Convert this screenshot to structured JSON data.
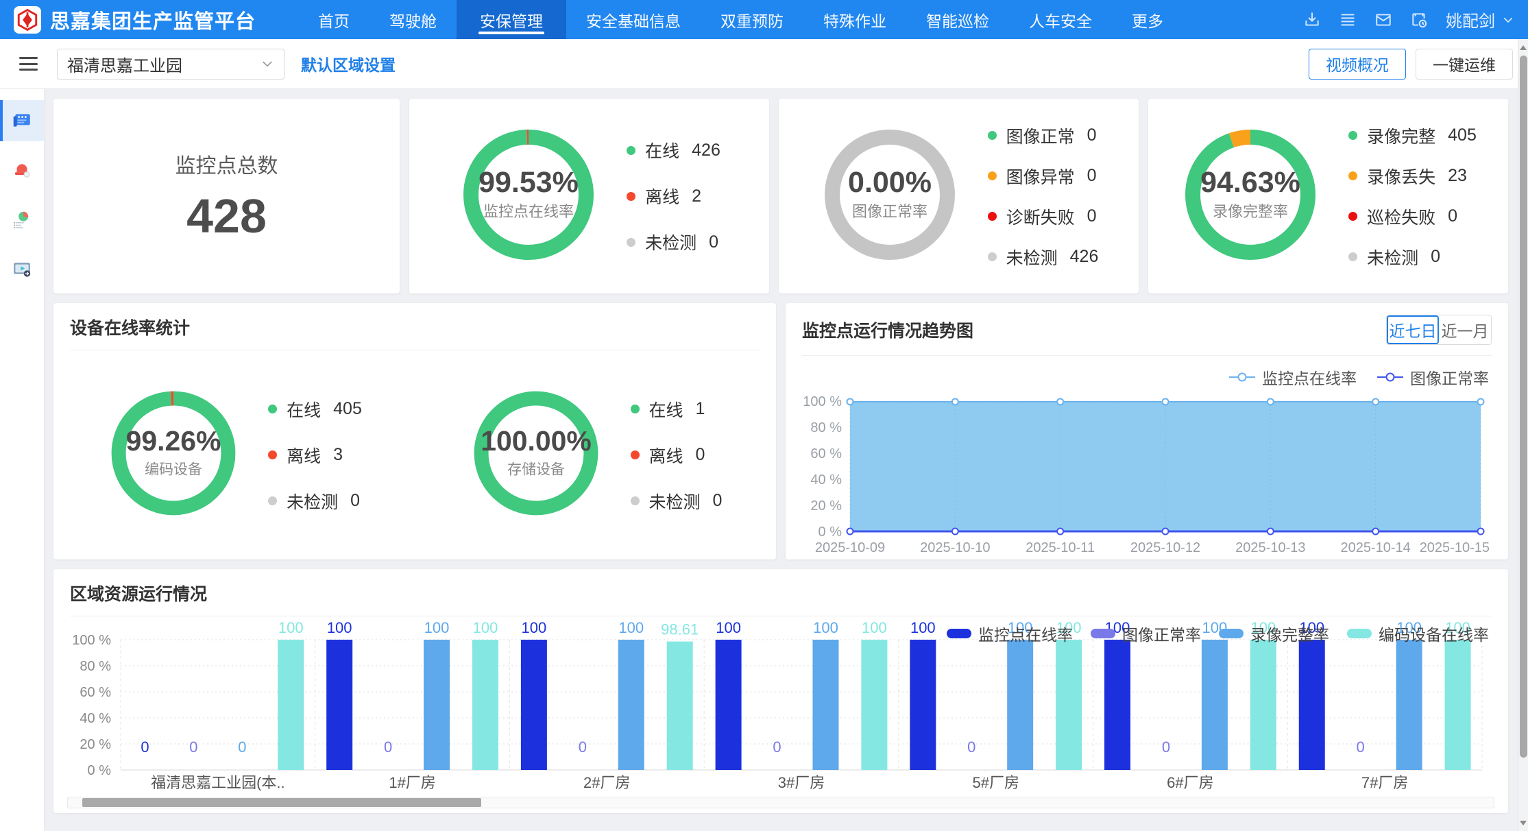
{
  "header": {
    "brand": "思嘉集团生产监管平台",
    "nav": [
      {
        "label": "首页",
        "active": false
      },
      {
        "label": "驾驶舱",
        "active": false
      },
      {
        "label": "安保管理",
        "active": true
      },
      {
        "label": "安全基础信息",
        "active": false
      },
      {
        "label": "双重预防",
        "active": false
      },
      {
        "label": "特殊作业",
        "active": false
      },
      {
        "label": "智能巡检",
        "active": false
      },
      {
        "label": "人车安全",
        "active": false
      },
      {
        "label": "更多",
        "active": false
      }
    ],
    "icons": [
      "download-icon",
      "menu-lines-icon",
      "mail-icon",
      "schedule-icon"
    ],
    "user": {
      "name": "姚配剑"
    }
  },
  "toolbar": {
    "region_select": {
      "value": "福清思嘉工业园"
    },
    "default_region_link": "默认区域设置",
    "buttons": [
      {
        "label": "视频概况"
      },
      {
        "label": "一键运维"
      }
    ]
  },
  "sidebar": {
    "items": [
      {
        "name": "video-wall",
        "active": true
      },
      {
        "name": "alarm",
        "active": false
      },
      {
        "name": "report",
        "active": false
      },
      {
        "name": "playback",
        "active": false
      }
    ]
  },
  "overview": {
    "total_card": {
      "label": "监控点总数",
      "value": "428"
    },
    "gauges": [
      {
        "percent": "99.53%",
        "label": "监控点在线率",
        "segments": [
          {
            "color": "#3fc87e",
            "pct": 99.53
          },
          {
            "color": "#f5492e",
            "pct": 0.47
          }
        ],
        "legend": [
          {
            "label": "在线",
            "value": "426",
            "color": "#3fc87e"
          },
          {
            "label": "离线",
            "value": "2",
            "color": "#f5492e"
          },
          {
            "label": "未检测",
            "value": "0",
            "color": "#cdcdcd"
          }
        ]
      },
      {
        "percent": "0.00%",
        "label": "图像正常率",
        "segments": [
          {
            "color": "#c5c5c5",
            "pct": 100
          }
        ],
        "legend": [
          {
            "label": "图像正常",
            "value": "0",
            "color": "#3fc87e"
          },
          {
            "label": "图像异常",
            "value": "0",
            "color": "#f9a11b"
          },
          {
            "label": "诊断失败",
            "value": "0",
            "color": "#ec0f0f"
          },
          {
            "label": "未检测",
            "value": "426",
            "color": "#cdcdcd"
          }
        ]
      },
      {
        "percent": "94.63%",
        "label": "录像完整率",
        "segments": [
          {
            "color": "#3fc87e",
            "pct": 94.63
          },
          {
            "color": "#f9a11b",
            "pct": 5.37
          }
        ],
        "legend": [
          {
            "label": "录像完整",
            "value": "405",
            "color": "#3fc87e"
          },
          {
            "label": "录像丢失",
            "value": "23",
            "color": "#f9a11b"
          },
          {
            "label": "巡检失败",
            "value": "0",
            "color": "#ec0f0f"
          },
          {
            "label": "未检测",
            "value": "0",
            "color": "#cdcdcd"
          }
        ]
      }
    ]
  },
  "device_panel": {
    "title": "设备在线率统计",
    "gauges": [
      {
        "percent": "99.26%",
        "label": "编码设备",
        "segments": [
          {
            "color": "#3fc87e",
            "pct": 99.26
          },
          {
            "color": "#f5492e",
            "pct": 0.74
          }
        ],
        "legend": [
          {
            "label": "在线",
            "value": "405",
            "color": "#3fc87e"
          },
          {
            "label": "离线",
            "value": "3",
            "color": "#f5492e"
          },
          {
            "label": "未检测",
            "value": "0",
            "color": "#cdcdcd"
          }
        ]
      },
      {
        "percent": "100.00%",
        "label": "存储设备",
        "segments": [
          {
            "color": "#3fc87e",
            "pct": 100
          }
        ],
        "legend": [
          {
            "label": "在线",
            "value": "1",
            "color": "#3fc87e"
          },
          {
            "label": "离线",
            "value": "0",
            "color": "#f5492e"
          },
          {
            "label": "未检测",
            "value": "0",
            "color": "#cdcdcd"
          }
        ]
      }
    ]
  },
  "trend_panel": {
    "title": "监控点运行情况趋势图",
    "range_buttons": [
      {
        "label": "近七日",
        "active": true
      },
      {
        "label": "近一月",
        "active": false
      }
    ]
  },
  "region_panel": {
    "title": "区域资源运行情况"
  },
  "chart_data": [
    {
      "type": "area",
      "title": "监控点运行情况趋势图",
      "x": [
        "2025-10-09",
        "2025-10-10",
        "2025-10-11",
        "2025-10-12",
        "2025-10-13",
        "2025-10-14",
        "2025-10-15"
      ],
      "series": [
        {
          "name": "监控点在线率",
          "color": "#6ab2ee",
          "fill": "#86c7f0",
          "values": [
            99.5,
            99.5,
            99.5,
            99.5,
            99.5,
            99.5,
            99.5
          ]
        },
        {
          "name": "图像正常率",
          "color": "#4054ef",
          "values": [
            0,
            0,
            0,
            0,
            0,
            0,
            0
          ]
        }
      ],
      "ylim": [
        0,
        100
      ],
      "ytick_suffix": " %",
      "legend_position": "top-right",
      "grid": true
    },
    {
      "type": "bar",
      "title": "区域资源运行情况",
      "categories": [
        "福清思嘉工业园(本..",
        "1#厂房",
        "2#厂房",
        "3#厂房",
        "5#厂房",
        "6#厂房",
        "7#厂房"
      ],
      "series": [
        {
          "name": "监控点在线率",
          "color": "#1c31dd",
          "values": [
            0,
            100,
            100,
            100,
            100,
            100,
            100
          ]
        },
        {
          "name": "图像正常率",
          "color": "#7b78e9",
          "values": [
            0,
            0,
            0,
            0,
            0,
            0,
            0
          ]
        },
        {
          "name": "录像完整率",
          "color": "#5ea8ec",
          "values": [
            0,
            100,
            100,
            100,
            100,
            100,
            100
          ]
        },
        {
          "name": "编码设备在线率",
          "color": "#84e7e2",
          "values": [
            100,
            100,
            98.61,
            100,
            100,
            100,
            100
          ]
        }
      ],
      "ylim": [
        0,
        100
      ],
      "ytick_suffix": " %",
      "legend_position": "top-right",
      "grid": true
    }
  ]
}
